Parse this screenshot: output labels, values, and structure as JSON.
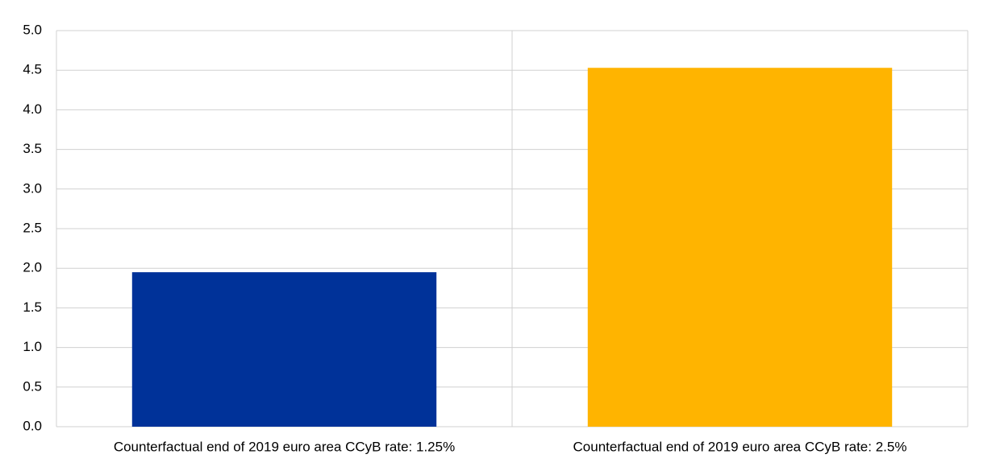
{
  "chart_data": {
    "type": "bar",
    "categories": [
      "Counterfactual end of 2019 euro area CCyB rate: 1.25%",
      "Counterfactual end of 2019 euro area CCyB rate: 2.5%"
    ],
    "values": [
      1.95,
      4.53
    ],
    "colors": [
      "#003299",
      "#ffb400"
    ],
    "ylim": [
      0,
      5
    ],
    "yticks": [
      {
        "value": 0,
        "label": "0.0"
      },
      {
        "value": 0.5,
        "label": "0.5"
      },
      {
        "value": 1,
        "label": "1.0"
      },
      {
        "value": 1.5,
        "label": "1.5"
      },
      {
        "value": 2,
        "label": "2.0"
      },
      {
        "value": 2.5,
        "label": "2.5"
      },
      {
        "value": 3,
        "label": "3.0"
      },
      {
        "value": 3.5,
        "label": "3.5"
      },
      {
        "value": 4,
        "label": "4.0"
      },
      {
        "value": 4.5,
        "label": "4.5"
      },
      {
        "value": 5,
        "label": "5.0"
      }
    ],
    "grid": true
  }
}
